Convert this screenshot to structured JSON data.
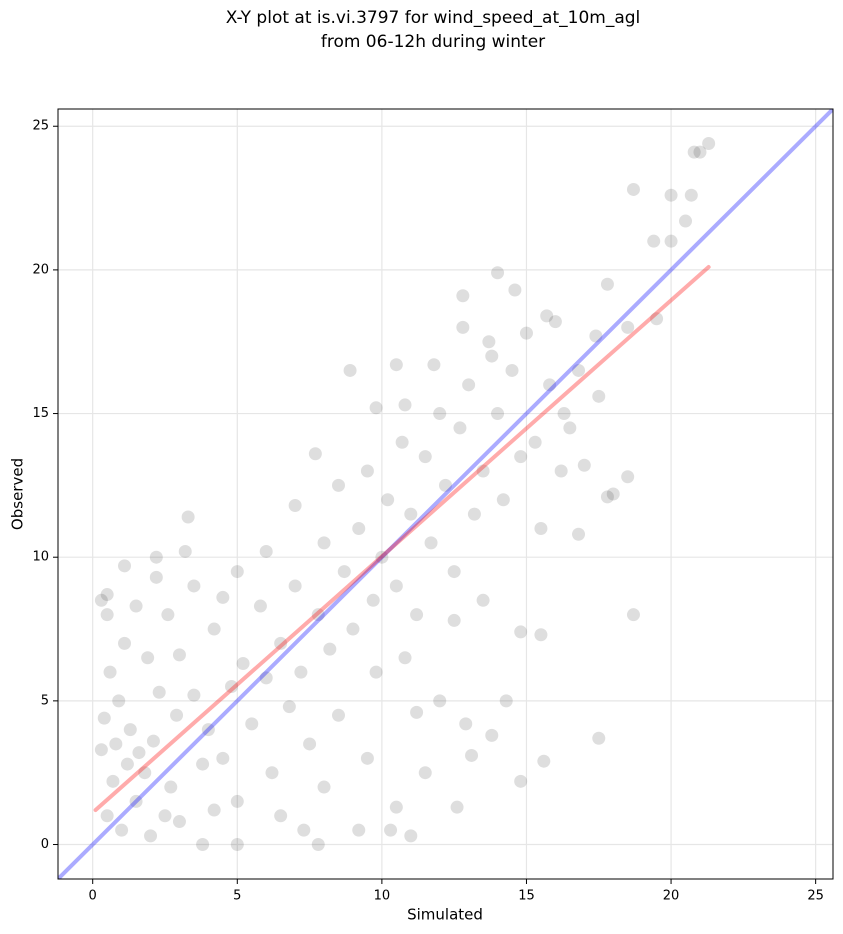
{
  "chart_data": {
    "type": "scatter",
    "title": "X-Y plot at is.vi.3797 for wind_speed_at_10m_agl",
    "subtitle": "from 06-12h during winter",
    "xlabel": "Simulated",
    "ylabel": "Observed",
    "xlim": [
      -1.2,
      25.6
    ],
    "ylim": [
      -1.2,
      25.6
    ],
    "xticks": [
      0,
      5,
      10,
      15,
      20,
      25
    ],
    "yticks": [
      0,
      5,
      10,
      15,
      20,
      25
    ],
    "grid": true,
    "series": [
      {
        "color": "#000000",
        "opacity": 0.13,
        "x": [
          21.3,
          20.8,
          21.0,
          18.7,
          20.0,
          20.7,
          20.5,
          19.4,
          20.0,
          19.5,
          17.8,
          14.0,
          14.6,
          12.8,
          8.9,
          18.7,
          17.5,
          15.6,
          14.8,
          12.6,
          11.0,
          10.3,
          9.2,
          7.8,
          5.0,
          3.8,
          0.3,
          0.5,
          0.5,
          3.3,
          3.2,
          2.2,
          1.1,
          7.7,
          18.5,
          18.0,
          17.8,
          16.8,
          15.5,
          14.8,
          13.8,
          14.3,
          11.2,
          12.0,
          13.1,
          16.3,
          16.8,
          17.4,
          16.0,
          15.7,
          18.5,
          0.5,
          0.7,
          0.8,
          1.0,
          1.2,
          1.3,
          1.5,
          1.6,
          0.9,
          0.6,
          1.8,
          2.0,
          2.1,
          2.3,
          2.5,
          2.7,
          2.9,
          3.0,
          0.3,
          0.4,
          1.1,
          1.9,
          2.6,
          3.5,
          3.8,
          4.0,
          4.2,
          4.5,
          4.8,
          5.0,
          5.2,
          5.5,
          5.8,
          6.0,
          6.2,
          6.5,
          6.8,
          7.0,
          7.2,
          7.5,
          7.8,
          8.0,
          8.2,
          8.5,
          8.7,
          9.0,
          9.2,
          9.5,
          9.7,
          10.0,
          10.2,
          10.5,
          10.7,
          11.0,
          11.2,
          11.5,
          11.7,
          12.0,
          12.2,
          12.5,
          12.7,
          13.0,
          13.2,
          13.5,
          13.7,
          14.0,
          14.2,
          14.5,
          14.8,
          15.0,
          15.3,
          15.5,
          15.8,
          16.2,
          16.5,
          17.0,
          17.5,
          7.0,
          6.0,
          5.0,
          4.5,
          3.5,
          8.5,
          9.5,
          10.5,
          11.5,
          9.8,
          10.8,
          12.5,
          13.5,
          8.0,
          6.5,
          7.3,
          11.8,
          10.8,
          9.8,
          10.5,
          12.8,
          13.8,
          3.0,
          4.2,
          2.2,
          1.5,
          12.9
        ],
        "y": [
          24.4,
          24.1,
          24.1,
          22.8,
          22.6,
          22.6,
          21.7,
          21.0,
          21.0,
          18.3,
          19.5,
          19.9,
          19.3,
          19.1,
          16.5,
          8.0,
          3.7,
          2.9,
          2.2,
          1.3,
          0.3,
          0.5,
          0.5,
          0.0,
          0.0,
          0.0,
          8.5,
          8.7,
          8.0,
          11.4,
          10.2,
          10.0,
          9.7,
          13.6,
          12.8,
          12.2,
          12.1,
          10.8,
          7.3,
          7.4,
          3.8,
          5.0,
          4.6,
          5.0,
          3.1,
          15.0,
          16.5,
          17.7,
          18.2,
          18.4,
          18.0,
          1.0,
          2.2,
          3.5,
          0.5,
          2.8,
          4.0,
          1.5,
          3.2,
          5.0,
          6.0,
          2.5,
          0.3,
          3.6,
          5.3,
          1.0,
          2.0,
          4.5,
          6.6,
          3.3,
          4.4,
          7.0,
          6.5,
          8.0,
          5.2,
          2.8,
          4.0,
          7.5,
          3.0,
          5.5,
          1.5,
          6.3,
          4.2,
          8.3,
          5.8,
          2.5,
          7.0,
          4.8,
          9.0,
          6.0,
          3.5,
          8.0,
          10.5,
          6.8,
          12.5,
          9.5,
          7.5,
          11.0,
          13.0,
          8.5,
          10.0,
          12.0,
          9.0,
          14.0,
          11.5,
          8.0,
          13.5,
          10.5,
          15.0,
          12.5,
          9.5,
          14.5,
          16.0,
          11.5,
          13.0,
          17.5,
          15.0,
          12.0,
          16.5,
          13.5,
          17.8,
          14.0,
          11.0,
          16.0,
          13.0,
          14.5,
          13.2,
          15.6,
          11.8,
          10.2,
          9.5,
          8.6,
          9.0,
          4.5,
          3.0,
          1.3,
          2.5,
          6.0,
          6.5,
          7.8,
          8.5,
          2.0,
          1.0,
          0.5,
          16.7,
          15.3,
          15.2,
          16.7,
          18.0,
          17.0,
          0.8,
          1.2,
          9.3,
          8.3,
          4.2
        ]
      }
    ],
    "lines": [
      {
        "color": "#0000ff",
        "x": [
          -1.2,
          25.6
        ],
        "y": [
          -1.2,
          25.6
        ]
      },
      {
        "color": "#ff0000",
        "x": [
          0.1,
          21.3
        ],
        "y": [
          1.2,
          20.1
        ]
      }
    ]
  }
}
